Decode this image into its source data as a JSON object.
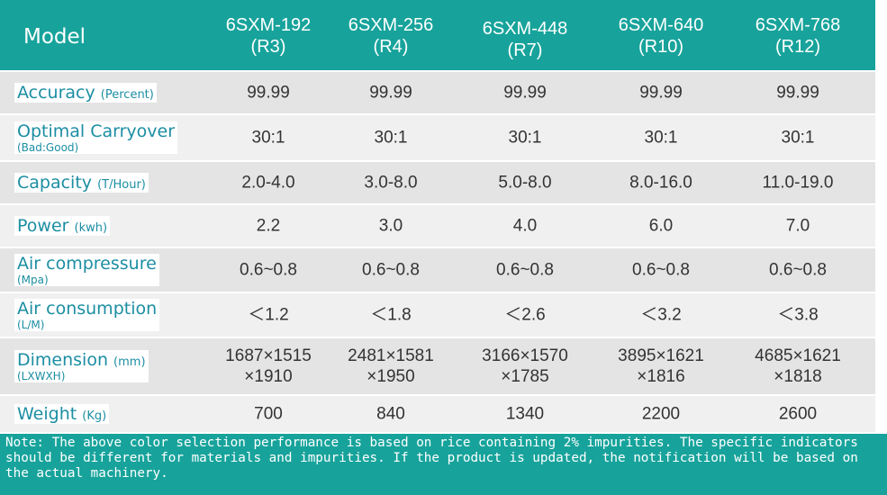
{
  "table": {
    "header": {
      "label": "Model",
      "columns": [
        {
          "model": "6SXM-192",
          "code": "(R3)"
        },
        {
          "model": "6SXM-256",
          "code": "(R4)"
        },
        {
          "model": "6SXM-448",
          "code": "(R7)"
        },
        {
          "model": "6SXM-640",
          "code": "(R10)"
        },
        {
          "model": "6SXM-768",
          "code": "(R12)"
        }
      ]
    },
    "rows": [
      {
        "label": "Accuracy",
        "unit": "(Percent)",
        "cells": [
          "99.99",
          "99.99",
          "99.99",
          "99.99",
          "99.99"
        ]
      },
      {
        "label": "Optimal Carryover",
        "sub": "(Bad:Good)",
        "cells": [
          "30:1",
          "30:1",
          "30:1",
          "30:1",
          "30:1"
        ]
      },
      {
        "label": "Capacity",
        "unit": "(T/Hour)",
        "cells": [
          "2.0-4.0",
          "3.0-8.0",
          "5.0-8.0",
          "8.0-16.0",
          "11.0-19.0"
        ]
      },
      {
        "label": "Power",
        "unit": "(kwh)",
        "cells": [
          "2.2",
          "3.0",
          "4.0",
          "6.0",
          "7.0"
        ]
      },
      {
        "label": "Air compressure",
        "sub": "(Mpa)",
        "cells": [
          "0.6~0.8",
          "0.6~0.8",
          "0.6~0.8",
          "0.6~0.8",
          "0.6~0.8"
        ]
      },
      {
        "label": "Air consumption",
        "sub": "(L/M)",
        "cells": [
          "＜1.2",
          "＜1.8",
          "＜2.6",
          "＜3.2",
          "＜3.8"
        ]
      },
      {
        "label": "Dimension",
        "unit": "(mm)",
        "sub": "(LXWXH)",
        "cells": [
          [
            "1687×1515",
            "×1910"
          ],
          [
            "2481×1581",
            "×1950"
          ],
          [
            "3166×1570",
            "×1785"
          ],
          [
            "3895×1621",
            "×1816"
          ],
          [
            "4685×1621",
            "×1818"
          ]
        ]
      },
      {
        "label": "Weight",
        "unit": "(Kg)",
        "cells": [
          "700",
          "840",
          "1340",
          "2200",
          "2600"
        ]
      }
    ]
  },
  "note": "Note: The above color selection performance is based on rice containing 2% impurities. The specific indicators should be different for materials and impurities. If the product is updated, the notification will be based on the actual machinery."
}
